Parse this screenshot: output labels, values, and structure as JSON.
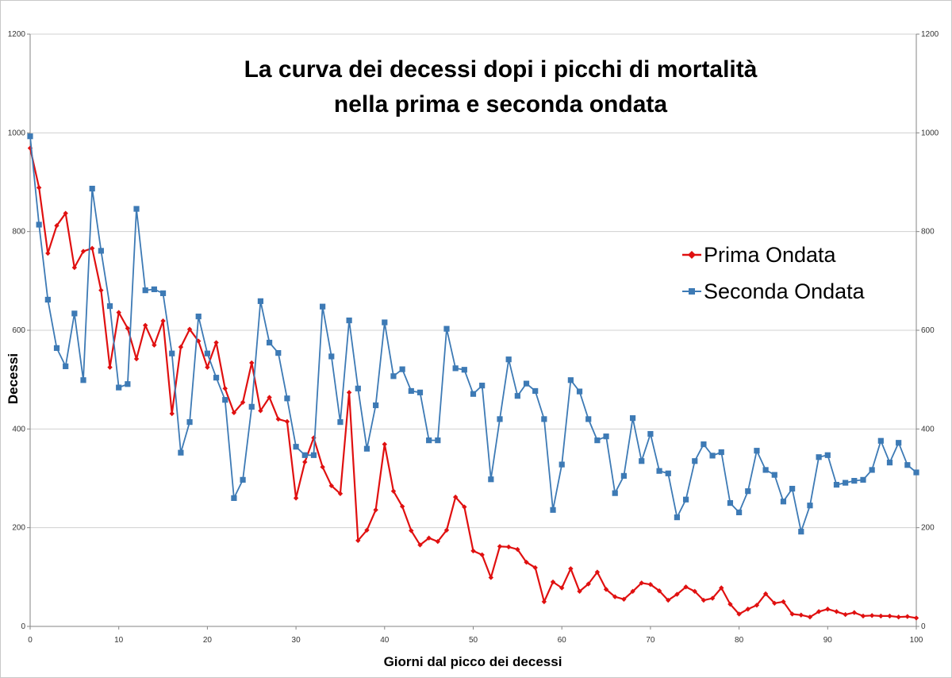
{
  "chart_data": {
    "type": "line",
    "title": [
      "La curva dei decessi dopi i picchi di mortalità",
      "nella prima e seconda ondata"
    ],
    "xlabel": "Giorni dal picco dei decessi",
    "ylabel": "Decessi",
    "xlim": [
      0,
      100
    ],
    "ylim": [
      0,
      1200
    ],
    "x_ticks": [
      0,
      10,
      20,
      30,
      40,
      50,
      60,
      70,
      80,
      90,
      100
    ],
    "y_ticks": [
      0,
      200,
      400,
      600,
      800,
      1000,
      1200
    ],
    "grid": true,
    "secondary_y_axis": true,
    "legend_position": "right",
    "series": [
      {
        "name": "Prima Ondata",
        "color": "#e01010",
        "marker": "diamond",
        "values": [
          969,
          889,
          756,
          812,
          837,
          727,
          760,
          766,
          681,
          525,
          636,
          604,
          542,
          610,
          570,
          619,
          431,
          566,
          602,
          578,
          525,
          575,
          482,
          433,
          454,
          534,
          437,
          464,
          420,
          415,
          260,
          333,
          382,
          323,
          285,
          269,
          474,
          174,
          195,
          236,
          369,
          274,
          243,
          194,
          165,
          179,
          172,
          195,
          262,
          242,
          153,
          145,
          99,
          162,
          161,
          156,
          130,
          119,
          50,
          90,
          78,
          117,
          71,
          86,
          110,
          75,
          60,
          55,
          71,
          88,
          85,
          72,
          53,
          65,
          80,
          71,
          53,
          57,
          78,
          45,
          25,
          35,
          43,
          66,
          47,
          50,
          25,
          23,
          19,
          30,
          35,
          30,
          24,
          28,
          21,
          22,
          21,
          21,
          19,
          20,
          17
        ]
      },
      {
        "name": "Seconda Ondata",
        "color": "#3d7ab5",
        "marker": "square",
        "values": [
          993,
          814,
          662,
          564,
          527,
          634,
          499,
          887,
          761,
          649,
          484,
          491,
          846,
          681,
          683,
          675,
          553,
          352,
          414,
          628,
          553,
          504,
          459,
          260,
          297,
          445,
          659,
          575,
          554,
          462,
          364,
          347,
          347,
          648,
          547,
          414,
          620,
          482,
          360,
          448,
          616,
          507,
          521,
          477,
          474,
          377,
          377,
          603,
          523,
          520,
          471,
          488,
          298,
          420,
          541,
          467,
          492,
          477,
          420,
          236,
          328,
          499,
          476,
          420,
          377,
          385,
          270,
          305,
          422,
          335,
          390,
          315,
          310,
          221,
          257,
          335,
          369,
          346,
          353,
          250,
          231,
          274,
          356,
          317,
          307,
          253,
          279,
          192,
          245,
          343,
          347,
          287,
          291,
          295,
          297,
          317,
          376,
          332,
          372,
          327,
          312
        ]
      }
    ]
  }
}
